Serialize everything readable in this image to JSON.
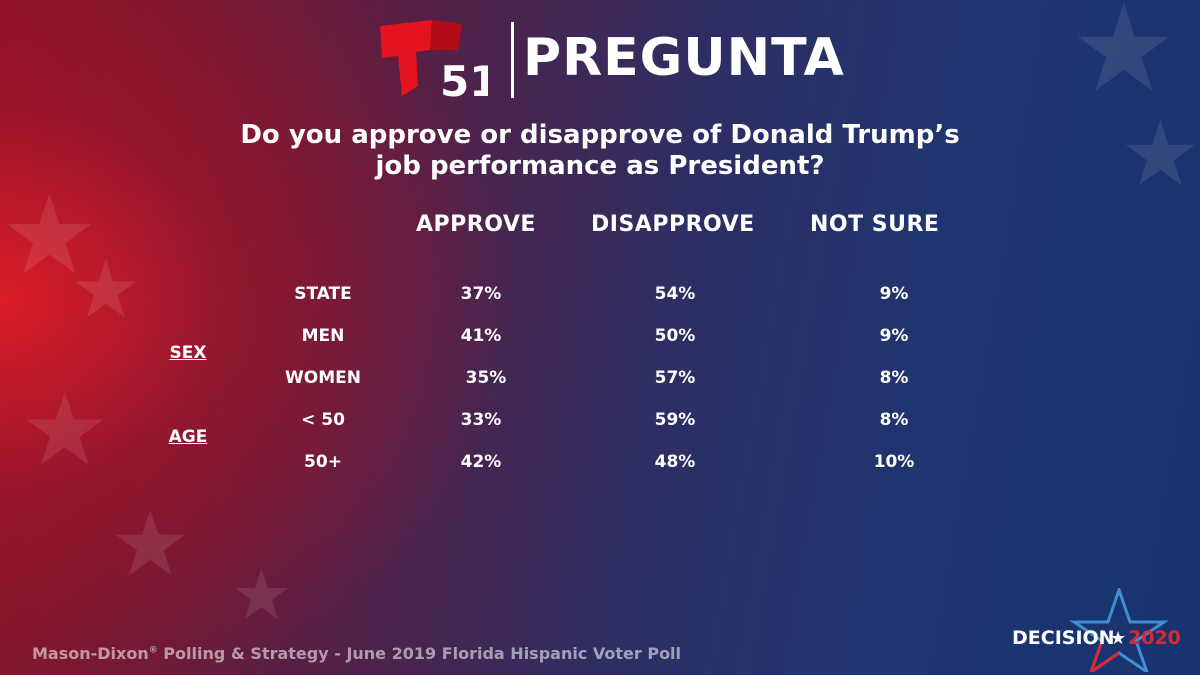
{
  "brand": {
    "channel": "51",
    "title": "PREGUNTA"
  },
  "question": {
    "line1": "Do you approve or disapprove of Donald Trump’s",
    "line2": "job performance as President?"
  },
  "chart_data": {
    "type": "table",
    "columns": [
      "APPROVE",
      "DISAPPROVE",
      "NOT SURE"
    ],
    "groups": [
      {
        "name": "SEX",
        "rows": [
          1,
          2
        ]
      },
      {
        "name": "AGE",
        "rows": [
          3,
          4
        ]
      }
    ],
    "rows": [
      {
        "label": "STATE",
        "values": [
          "37%",
          "54%",
          "9%"
        ]
      },
      {
        "label": "MEN",
        "values": [
          "41%",
          "50%",
          "9%"
        ]
      },
      {
        "label": "WOMEN",
        "values": [
          "35%",
          "57%",
          "8%"
        ]
      },
      {
        "label": "< 50",
        "values": [
          "33%",
          "59%",
          "8%"
        ]
      },
      {
        "label": "50+",
        "values": [
          "42%",
          "48%",
          "10%"
        ]
      }
    ]
  },
  "source": {
    "pre": "Mason-Dixon",
    "mark": "®",
    "post": " Polling & Strategy - June 2019 Florida Hispanic Voter Poll"
  },
  "decision": {
    "word": "DECISION",
    "year": "2020"
  },
  "colors": {
    "telemundo_red": "#e3141e",
    "decision_blue": "#3f8fd8",
    "decision_red": "#d82a30"
  }
}
